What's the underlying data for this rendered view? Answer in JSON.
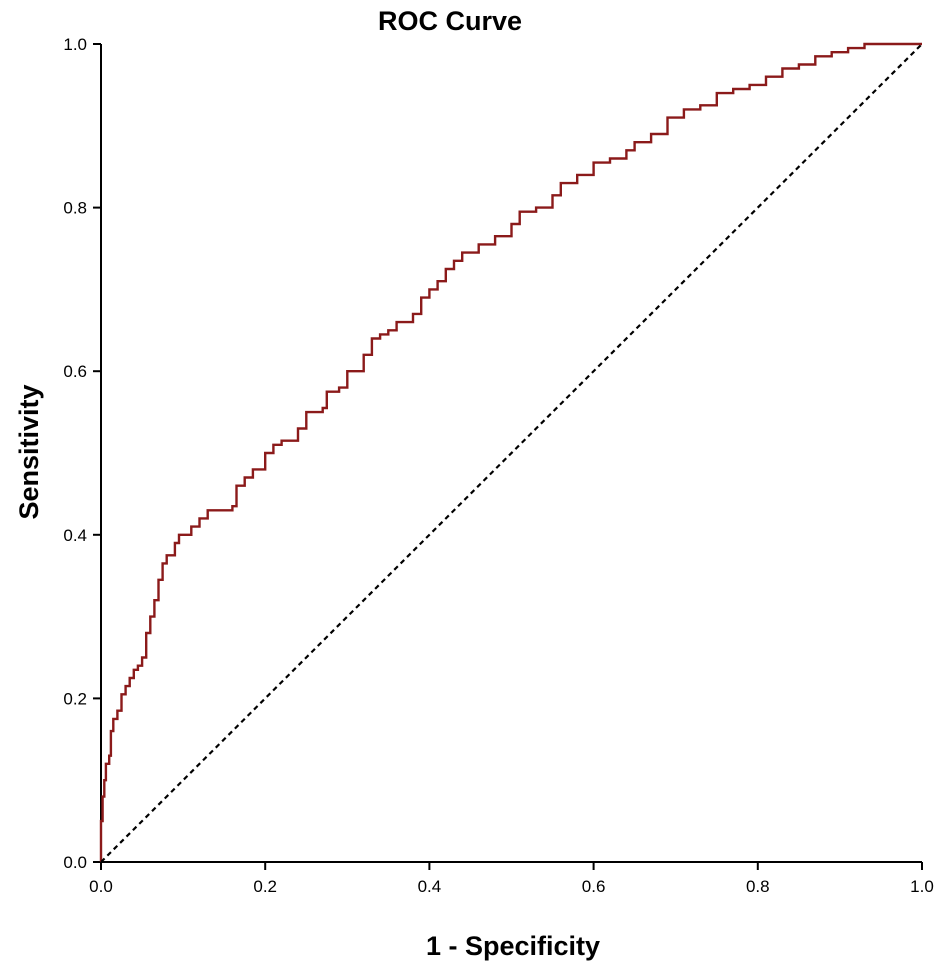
{
  "chart_data": {
    "type": "line",
    "title": "ROC Curve",
    "xlabel": "1 - Specificity",
    "ylabel": "Sensitivity",
    "xlim": [
      0,
      1
    ],
    "ylim": [
      0,
      1
    ],
    "x_ticks": [
      "0.0",
      "0.2",
      "0.4",
      "0.6",
      "0.8",
      "1.0"
    ],
    "y_ticks": [
      "0.0",
      "0.2",
      "0.4",
      "0.6",
      "0.8",
      "1.0"
    ],
    "grid": false,
    "legend": "none",
    "colors": {
      "roc_curve": "#8b1a1a",
      "reference_line": "#000000"
    },
    "series": [
      {
        "style": "solid",
        "points": [
          [
            0.0,
            0.0
          ],
          [
            0.0,
            0.05
          ],
          [
            0.002,
            0.08
          ],
          [
            0.004,
            0.1
          ],
          [
            0.006,
            0.12
          ],
          [
            0.01,
            0.13
          ],
          [
            0.012,
            0.16
          ],
          [
            0.015,
            0.175
          ],
          [
            0.02,
            0.185
          ],
          [
            0.025,
            0.205
          ],
          [
            0.03,
            0.215
          ],
          [
            0.035,
            0.225
          ],
          [
            0.04,
            0.235
          ],
          [
            0.045,
            0.24
          ],
          [
            0.05,
            0.25
          ],
          [
            0.055,
            0.28
          ],
          [
            0.06,
            0.3
          ],
          [
            0.065,
            0.32
          ],
          [
            0.07,
            0.345
          ],
          [
            0.075,
            0.365
          ],
          [
            0.08,
            0.375
          ],
          [
            0.09,
            0.39
          ],
          [
            0.095,
            0.4
          ],
          [
            0.1,
            0.4
          ],
          [
            0.11,
            0.41
          ],
          [
            0.12,
            0.42
          ],
          [
            0.13,
            0.43
          ],
          [
            0.16,
            0.435
          ],
          [
            0.165,
            0.46
          ],
          [
            0.175,
            0.47
          ],
          [
            0.185,
            0.48
          ],
          [
            0.2,
            0.5
          ],
          [
            0.21,
            0.51
          ],
          [
            0.22,
            0.515
          ],
          [
            0.24,
            0.53
          ],
          [
            0.25,
            0.55
          ],
          [
            0.27,
            0.555
          ],
          [
            0.275,
            0.575
          ],
          [
            0.29,
            0.58
          ],
          [
            0.3,
            0.6
          ],
          [
            0.32,
            0.62
          ],
          [
            0.33,
            0.64
          ],
          [
            0.34,
            0.645
          ],
          [
            0.35,
            0.65
          ],
          [
            0.36,
            0.66
          ],
          [
            0.38,
            0.67
          ],
          [
            0.39,
            0.69
          ],
          [
            0.4,
            0.7
          ],
          [
            0.41,
            0.71
          ],
          [
            0.42,
            0.725
          ],
          [
            0.43,
            0.735
          ],
          [
            0.44,
            0.745
          ],
          [
            0.46,
            0.755
          ],
          [
            0.48,
            0.765
          ],
          [
            0.5,
            0.78
          ],
          [
            0.51,
            0.795
          ],
          [
            0.53,
            0.8
          ],
          [
            0.55,
            0.815
          ],
          [
            0.56,
            0.83
          ],
          [
            0.58,
            0.84
          ],
          [
            0.6,
            0.855
          ],
          [
            0.62,
            0.86
          ],
          [
            0.64,
            0.87
          ],
          [
            0.65,
            0.88
          ],
          [
            0.67,
            0.89
          ],
          [
            0.69,
            0.91
          ],
          [
            0.71,
            0.92
          ],
          [
            0.73,
            0.925
          ],
          [
            0.75,
            0.94
          ],
          [
            0.77,
            0.945
          ],
          [
            0.79,
            0.95
          ],
          [
            0.81,
            0.96
          ],
          [
            0.83,
            0.97
          ],
          [
            0.85,
            0.975
          ],
          [
            0.87,
            0.985
          ],
          [
            0.89,
            0.99
          ],
          [
            0.91,
            0.995
          ],
          [
            0.93,
            1.0
          ],
          [
            1.0,
            1.0
          ]
        ]
      },
      {
        "style": "dashed",
        "points": [
          [
            0,
            0
          ],
          [
            1,
            1
          ]
        ]
      }
    ]
  }
}
